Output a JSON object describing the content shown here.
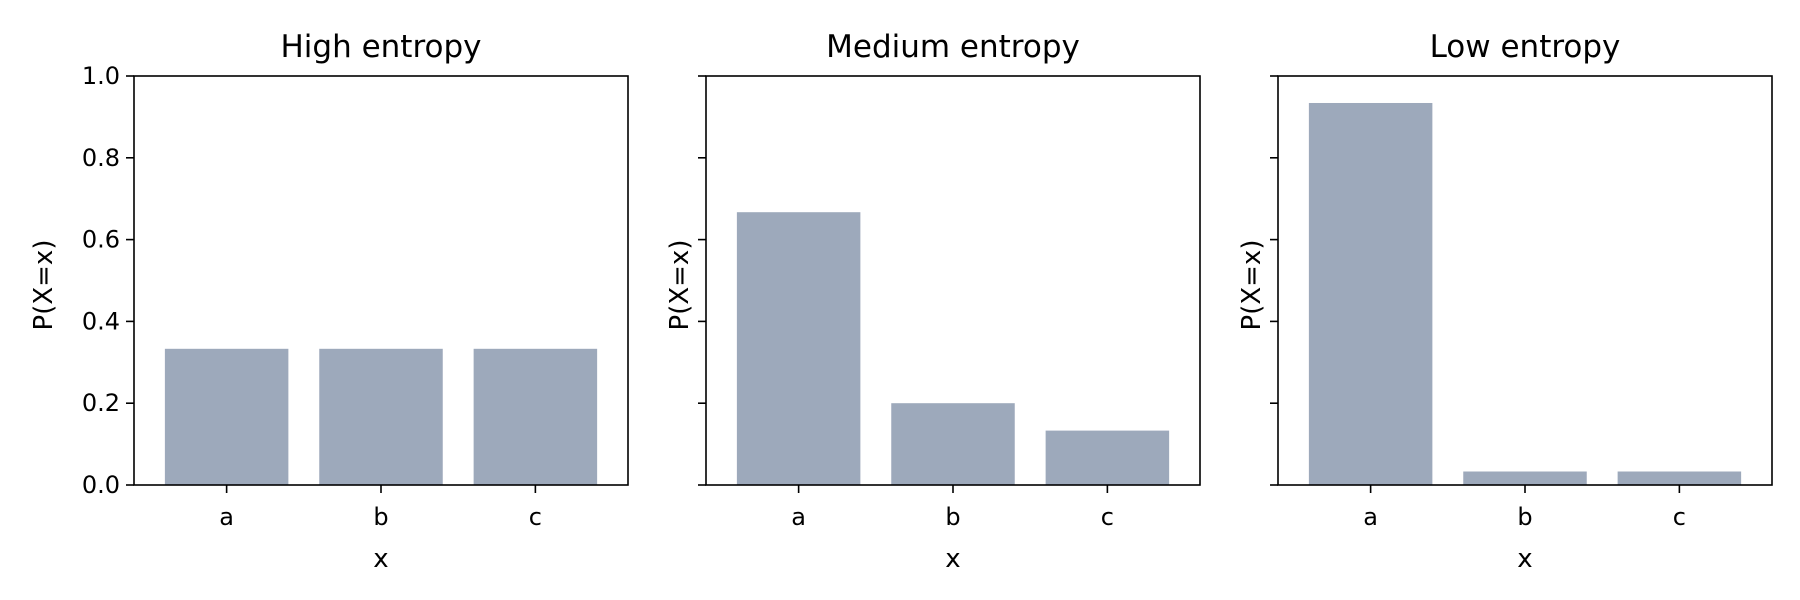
{
  "chart_data": [
    {
      "type": "bar",
      "title": "High entropy",
      "xlabel": "x",
      "ylabel": "P(X=x)",
      "categories": [
        "a",
        "b",
        "c"
      ],
      "values": [
        0.333,
        0.333,
        0.333
      ],
      "ylim": [
        0,
        1
      ],
      "yticks": [
        "0.0",
        "0.2",
        "0.4",
        "0.6",
        "0.8",
        "1.0"
      ],
      "show_ytick_labels": true,
      "grid": false,
      "bar_color": "#9DA9BB"
    },
    {
      "type": "bar",
      "title": "Medium entropy",
      "xlabel": "x",
      "ylabel": "P(X=x)",
      "categories": [
        "a",
        "b",
        "c"
      ],
      "values": [
        0.667,
        0.2,
        0.133
      ],
      "ylim": [
        0,
        1
      ],
      "yticks": [
        "0.0",
        "0.2",
        "0.4",
        "0.6",
        "0.8",
        "1.0"
      ],
      "show_ytick_labels": false,
      "grid": false,
      "bar_color": "#9DA9BB"
    },
    {
      "type": "bar",
      "title": "Low entropy",
      "xlabel": "x",
      "ylabel": "P(X=x)",
      "categories": [
        "a",
        "b",
        "c"
      ],
      "values": [
        0.934,
        0.033,
        0.033
      ],
      "ylim": [
        0,
        1
      ],
      "yticks": [
        "0.0",
        "0.2",
        "0.4",
        "0.6",
        "0.8",
        "1.0"
      ],
      "show_ytick_labels": false,
      "grid": false,
      "bar_color": "#9DA9BB"
    }
  ]
}
